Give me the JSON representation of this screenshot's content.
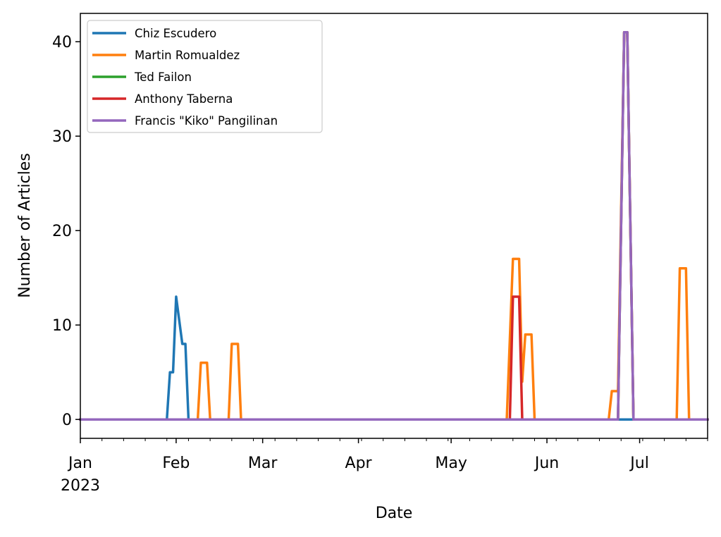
{
  "chart_data": {
    "type": "line",
    "title": "",
    "xlabel": "Date",
    "ylabel": "Number of Articles",
    "x_axis": {
      "start": "2023-01-01",
      "end": "2023-07-23",
      "major_ticks": [
        {
          "date": "2023-01-01",
          "label": "Jan",
          "sublabel": "2023"
        },
        {
          "date": "2023-02-01",
          "label": "Feb",
          "sublabel": ""
        },
        {
          "date": "2023-03-01",
          "label": "Mar",
          "sublabel": ""
        },
        {
          "date": "2023-04-01",
          "label": "Apr",
          "sublabel": ""
        },
        {
          "date": "2023-05-01",
          "label": "May",
          "sublabel": ""
        },
        {
          "date": "2023-06-01",
          "label": "Jun",
          "sublabel": ""
        },
        {
          "date": "2023-07-01",
          "label": "Jul",
          "sublabel": ""
        }
      ]
    },
    "ylim": [
      -2,
      43
    ],
    "y_ticks": [
      0,
      10,
      20,
      30,
      40
    ],
    "grid": false,
    "legend_position": "top-left",
    "series": [
      {
        "name": "Chiz Escudero",
        "color": "#1f77b4",
        "points": [
          [
            "2023-01-01",
            0
          ],
          [
            "2023-01-29",
            0
          ],
          [
            "2023-01-30",
            5
          ],
          [
            "2023-01-31",
            5
          ],
          [
            "2023-02-01",
            13
          ],
          [
            "2023-02-03",
            8
          ],
          [
            "2023-02-04",
            8
          ],
          [
            "2023-02-05",
            0
          ],
          [
            "2023-07-23",
            0
          ]
        ]
      },
      {
        "name": "Martin Romualdez",
        "color": "#ff7f0e",
        "points": [
          [
            "2023-01-01",
            0
          ],
          [
            "2023-02-08",
            0
          ],
          [
            "2023-02-09",
            6
          ],
          [
            "2023-02-11",
            6
          ],
          [
            "2023-02-12",
            0
          ],
          [
            "2023-02-18",
            0
          ],
          [
            "2023-02-19",
            8
          ],
          [
            "2023-02-21",
            8
          ],
          [
            "2023-02-22",
            0
          ],
          [
            "2023-05-19",
            0
          ],
          [
            "2023-05-21",
            17
          ],
          [
            "2023-05-23",
            17
          ],
          [
            "2023-05-24",
            4
          ],
          [
            "2023-05-25",
            9
          ],
          [
            "2023-05-27",
            9
          ],
          [
            "2023-05-28",
            0
          ],
          [
            "2023-06-21",
            0
          ],
          [
            "2023-06-22",
            3
          ],
          [
            "2023-06-24",
            3
          ],
          [
            "2023-06-26",
            41
          ],
          [
            "2023-06-27",
            41
          ],
          [
            "2023-06-29",
            0
          ],
          [
            "2023-07-13",
            0
          ],
          [
            "2023-07-14",
            16
          ],
          [
            "2023-07-16",
            16
          ],
          [
            "2023-07-17",
            0
          ],
          [
            "2023-07-23",
            0
          ]
        ]
      },
      {
        "name": "Ted Failon",
        "color": "#2ca02c",
        "points": [
          [
            "2023-01-01",
            0
          ],
          [
            "2023-06-24",
            0
          ],
          [
            "2023-06-26",
            41
          ],
          [
            "2023-06-27",
            41
          ],
          [
            "2023-06-29",
            0
          ],
          [
            "2023-07-23",
            0
          ]
        ]
      },
      {
        "name": "Anthony Taberna",
        "color": "#d62728",
        "points": [
          [
            "2023-01-01",
            0
          ],
          [
            "2023-05-20",
            0
          ],
          [
            "2023-05-21",
            13
          ],
          [
            "2023-05-23",
            13
          ],
          [
            "2023-05-24",
            0
          ],
          [
            "2023-06-24",
            0
          ],
          [
            "2023-06-26",
            41
          ],
          [
            "2023-06-27",
            41
          ],
          [
            "2023-06-29",
            0
          ],
          [
            "2023-07-23",
            0
          ]
        ]
      },
      {
        "name": "Francis \"Kiko\" Pangilinan",
        "color": "#9467bd",
        "points": [
          [
            "2023-01-01",
            0
          ],
          [
            "2023-06-24",
            0
          ],
          [
            "2023-06-26",
            41
          ],
          [
            "2023-06-27",
            41
          ],
          [
            "2023-06-29",
            0
          ],
          [
            "2023-07-23",
            0
          ]
        ]
      }
    ]
  }
}
